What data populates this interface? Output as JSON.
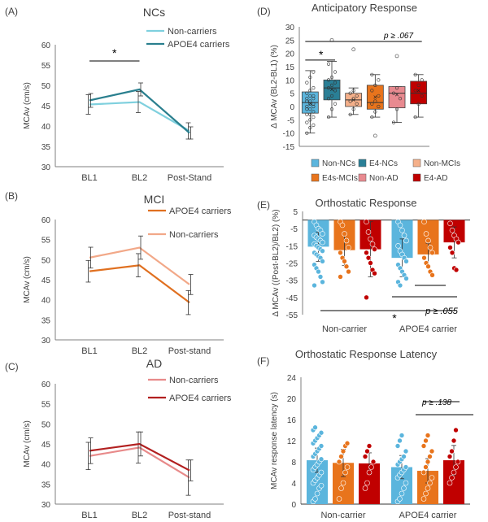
{
  "colors": {
    "nc_non": "#7fd0de",
    "nc_e4": "#2a7f8e",
    "mci_non": "#f2a888",
    "mci_e4": "#e07020",
    "ad_non": "#e88a8a",
    "ad_e4": "#b22020",
    "bar_non_nc": "#5bb5dd",
    "bar_e4_nc": "#2a7f96",
    "bar_non_mci": "#f5b08a",
    "bar_e4_mci": "#e8741c",
    "bar_non_ad": "#e88a90",
    "bar_e4_ad": "#c00000",
    "axis": "#7f7f7f",
    "text": "#404040"
  },
  "chart_data": [
    {
      "id": "A",
      "panel_label": "(A)",
      "type": "line",
      "title": "NCs",
      "ylabel": "MCAv (cm/s)",
      "ylim": [
        30,
        60
      ],
      "yticks": [
        "30",
        "35",
        "40",
        "45",
        "50",
        "55",
        "60"
      ],
      "categories": [
        "BL1",
        "BL2",
        "Post-Stand"
      ],
      "series": [
        {
          "name": "Non-carriers",
          "values": [
            45.3,
            45.9,
            38.8
          ],
          "err": [
            2.4,
            2.6,
            2.0
          ],
          "color_key": "nc_non"
        },
        {
          "name": "APOE4 carriers",
          "values": [
            46.3,
            49.0,
            38.3
          ],
          "err": [
            1.7,
            1.6,
            1.5
          ],
          "color_key": "nc_e4"
        }
      ],
      "annotation": "*"
    },
    {
      "id": "B",
      "panel_label": "(B)",
      "type": "line",
      "title": "MCI",
      "ylabel": "MCAv (cm/s)",
      "ylim": [
        30,
        60
      ],
      "yticks": [
        "30",
        "35",
        "40",
        "45",
        "50",
        "55",
        "60"
      ],
      "categories": [
        "BL1",
        "BL2",
        "Post-stand"
      ],
      "series": [
        {
          "name": "APOE4 carriers",
          "values": [
            47.1,
            48.6,
            39.3
          ],
          "err": [
            2.7,
            2.9,
            3.0
          ],
          "color_key": "mci_e4"
        },
        {
          "name": "Non-carriers",
          "values": [
            50.5,
            53.0,
            43.8
          ],
          "err": [
            2.6,
            2.9,
            2.5
          ],
          "color_key": "mci_non"
        }
      ]
    },
    {
      "id": "C",
      "panel_label": "(C)",
      "type": "line",
      "title": "AD",
      "ylabel": "MCAv (cm/s)",
      "ylim": [
        30,
        60
      ],
      "yticks": [
        "30",
        "35",
        "40",
        "45",
        "50",
        "55",
        "60"
      ],
      "categories": [
        "BL1",
        "BL2",
        "Post-stand"
      ],
      "series": [
        {
          "name": "Non-carriers",
          "values": [
            42.0,
            44.1,
            36.6
          ],
          "err": [
            3.4,
            3.9,
            4.4
          ],
          "color_key": "ad_non"
        },
        {
          "name": "APOE4 carriers",
          "values": [
            43.3,
            45.0,
            38.4
          ],
          "err": [
            3.2,
            3.0,
            2.6
          ],
          "color_key": "ad_e4"
        }
      ]
    },
    {
      "id": "D",
      "panel_label": "(D)",
      "type": "box",
      "title": "Anticipatory Response",
      "ylabel": "Δ MCAv  (BL2-BL1) (%)",
      "ylim": [
        -15,
        30
      ],
      "yticks": [
        "-15",
        "-10",
        "-5",
        "0",
        "5",
        "10",
        "15",
        "20",
        "25",
        "30"
      ],
      "boxes": [
        {
          "name": "Non-NCs",
          "q1": -2.5,
          "median": 1.5,
          "q3": 5.5,
          "whisker_low": -10,
          "whisker_high": 13.5,
          "mean": 1.0,
          "color_key": "bar_non_nc",
          "points": [
            -10,
            -8,
            -7,
            -6,
            -5,
            -4,
            -3,
            -3,
            -2,
            -1,
            -1,
            0,
            0,
            1,
            1,
            2,
            2,
            3,
            3,
            4,
            4,
            5,
            6,
            7,
            9,
            11,
            13
          ]
        },
        {
          "name": "E4-NCs",
          "q1": 2.5,
          "median": 7,
          "q3": 10,
          "whisker_low": -4,
          "whisker_high": 17,
          "mean": 6.5,
          "outliers": [
            25
          ],
          "color_key": "bar_e4_nc",
          "points": [
            -4,
            -1,
            1,
            3,
            4,
            6,
            7,
            8,
            9,
            10,
            11,
            13,
            16
          ]
        },
        {
          "name": "Non-MCIs",
          "q1": 0,
          "median": 2.5,
          "q3": 5,
          "whisker_low": -3,
          "whisker_high": 7,
          "mean": 2.5,
          "outliers": [
            21.5
          ],
          "color_key": "bar_non_mci",
          "points": [
            -3,
            -1,
            1,
            2,
            3,
            4,
            5,
            6
          ]
        },
        {
          "name": "E4s-MCIs",
          "q1": -1,
          "median": 1.5,
          "q3": 8,
          "whisker_low": -4,
          "whisker_high": 12,
          "mean": 3.5,
          "outliers": [
            -11
          ],
          "color_key": "bar_e4_mci",
          "points": [
            -4,
            -2,
            0,
            1,
            2,
            4,
            6,
            8,
            10,
            12
          ]
        },
        {
          "name": "Non-AD",
          "q1": -0.5,
          "median": 5,
          "q3": 7.5,
          "whisker_low": -6,
          "whisker_high": 7.5,
          "mean": 4.5,
          "outliers": [
            19
          ],
          "color_key": "bar_non_ad",
          "points": [
            -6,
            -1,
            3,
            5,
            7
          ]
        },
        {
          "name": "E4-AD",
          "q1": 1,
          "median": 5,
          "q3": 9.5,
          "whisker_low": -4,
          "whisker_high": 12,
          "mean": 6,
          "color_key": "bar_e4_ad",
          "points": [
            -4,
            1,
            4,
            6,
            8,
            10,
            12
          ]
        }
      ],
      "annotations": [
        "*",
        "p ≥ .067"
      ]
    },
    {
      "id": "E",
      "panel_label": "(E)",
      "type": "bar",
      "title": "Orthostatic Response",
      "ylabel": "Δ MCAv  ((Post-BL2)/BL2) (%)",
      "ylim": [
        -55,
        5
      ],
      "yticks": [
        "-55",
        "-45",
        "-35",
        "-25",
        "-15",
        "-5",
        "5"
      ],
      "categories": [
        "Non-carrier",
        "APOE4 carrier"
      ],
      "series": [
        {
          "name": "NC",
          "values": [
            -15.5,
            -22.0
          ],
          "err": [
            8.5,
            11.0
          ],
          "color_key": "bar_non_nc"
        },
        {
          "name": "MCI",
          "values": [
            -17.5,
            -20.0
          ],
          "err": [
            9.0,
            6.5
          ],
          "color_key": "bar_e4_mci"
        },
        {
          "name": "AD",
          "values": [
            -17.0,
            -13.0
          ],
          "err": [
            16.0,
            9.0
          ],
          "color_key": "bar_e4_ad"
        }
      ],
      "points": [
        [
          [
            -1,
            -3,
            -5,
            -6,
            -8,
            -9,
            -10,
            -11,
            -12,
            -13,
            -14,
            -15,
            -16,
            -17,
            -18,
            -19,
            -20,
            -21,
            -22,
            -24,
            -26,
            -28,
            -30,
            -33,
            -36,
            -38
          ],
          [
            -1,
            -3,
            -8,
            -12,
            -16,
            -19,
            -22,
            -24,
            -27,
            -30,
            -33
          ],
          [
            -1,
            -7,
            -11,
            -14,
            -17,
            -19,
            -22,
            -25,
            -29,
            -31,
            -45
          ]
        ],
        [
          [
            -1,
            -3,
            -6,
            -9,
            -12,
            -15,
            -18,
            -20,
            -22,
            -24,
            -26,
            -28,
            -30,
            -32,
            -34,
            -36,
            -38
          ],
          [
            -1,
            -8,
            -12,
            -16,
            -19,
            -22,
            -25,
            -27,
            -30,
            -32
          ],
          [
            -2,
            -6,
            -9,
            -11,
            -13,
            -16,
            -19,
            -28,
            -29
          ]
        ]
      ],
      "annotations": [
        "*",
        "p ≥ .055"
      ]
    },
    {
      "id": "F",
      "panel_label": "(F)",
      "type": "bar",
      "title": "Orthostatic Response Latency",
      "ylabel": "MCAv response latency (s)",
      "ylim": [
        0,
        24
      ],
      "yticks": [
        "0",
        "4",
        "8",
        "12",
        "16",
        "20",
        "24"
      ],
      "categories": [
        "Non-carrier",
        "APOE4 carrier"
      ],
      "series": [
        {
          "name": "NC",
          "values": [
            8.3,
            7.0
          ],
          "err": [
            2.3,
            2.2
          ],
          "color_key": "bar_non_nc"
        },
        {
          "name": "MCI",
          "values": [
            7.8,
            6.3
          ],
          "err": [
            2.6,
            2.3
          ],
          "color_key": "bar_e4_mci"
        },
        {
          "name": "AD",
          "values": [
            7.7,
            8.3
          ],
          "err": [
            2.0,
            2.8
          ],
          "color_key": "bar_e4_ad"
        }
      ],
      "points": [
        [
          [
            0.5,
            1,
            2,
            3,
            3.5,
            4,
            4.5,
            5,
            5.5,
            6,
            6.5,
            7,
            7.5,
            8,
            8.5,
            9,
            9.5,
            10,
            10.5,
            11,
            11.5,
            12,
            12.5,
            13,
            13.5,
            14,
            14.5
          ],
          [
            1,
            3,
            4,
            6,
            7,
            8,
            9,
            10,
            11,
            11.5
          ],
          [
            3,
            4,
            6,
            7,
            8,
            9,
            10,
            11
          ]
        ],
        [
          [
            0.5,
            1,
            2,
            3,
            4,
            5,
            5.5,
            6,
            6.5,
            7,
            7.5,
            8,
            8.5,
            9,
            10,
            11,
            12,
            13
          ],
          [
            1,
            2,
            3,
            4,
            5,
            6,
            7,
            8,
            9,
            10,
            11,
            12,
            13
          ],
          [
            4,
            5,
            6,
            7,
            8,
            9,
            10,
            12,
            14
          ]
        ]
      ],
      "annotations": [
        "p ≥ .138"
      ]
    }
  ],
  "legend_D": [
    "Non-NCs",
    "E4-NCs",
    "Non-MCIs",
    "E4s-MCIs",
    "Non-AD",
    "E4-AD"
  ]
}
